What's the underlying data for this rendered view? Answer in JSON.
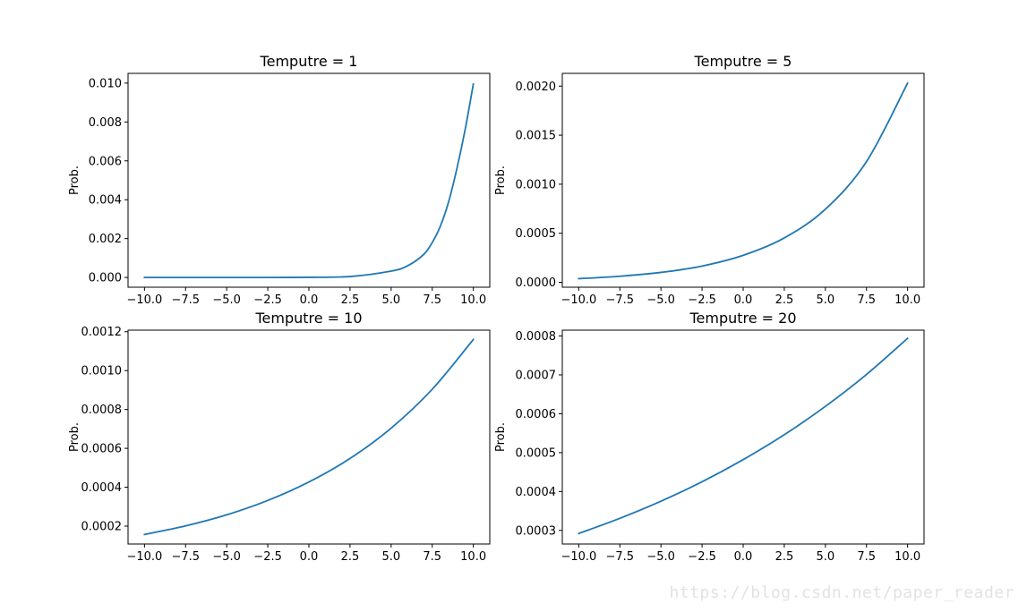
{
  "chart_data": [
    {
      "type": "line",
      "title": "Temputre = 1",
      "ylabel": "Prob.",
      "xlabel": "",
      "xlim": [
        -11.0,
        11.0
      ],
      "ylim": [
        -0.0005,
        0.0105
      ],
      "xticks": [
        "−10.0",
        "−7.5",
        "−5.0",
        "−2.5",
        "0.0",
        "2.5",
        "5.0",
        "7.5",
        "10.0"
      ],
      "yticks": [
        "0.000",
        "0.002",
        "0.004",
        "0.006",
        "0.008",
        "0.010"
      ],
      "series": [
        {
          "color": "#1f77b4",
          "x": [
            -10,
            -7.5,
            -5,
            -2.5,
            0,
            2.5,
            5,
            6,
            7,
            7.5,
            8,
            8.5,
            9,
            9.5,
            10
          ],
          "y": [
            0.0,
            0.0,
            0.0,
            0.0,
            1e-05,
            5e-05,
            0.00033,
            0.0006,
            0.0012,
            0.0018,
            0.00265,
            0.0039,
            0.0056,
            0.0076,
            0.00995
          ]
        }
      ]
    },
    {
      "type": "line",
      "title": "Temputre = 5",
      "ylabel": "Prob.",
      "xlabel": "",
      "xlim": [
        -11.0,
        11.0
      ],
      "ylim": [
        -5e-05,
        0.00213
      ],
      "xticks": [
        "−10.0",
        "−7.5",
        "−5.0",
        "−2.5",
        "0.0",
        "2.5",
        "5.0",
        "7.5",
        "10.0"
      ],
      "yticks": [
        "0.0000",
        "0.0005",
        "0.0010",
        "0.0015",
        "0.0020"
      ],
      "series": [
        {
          "color": "#1f77b4",
          "x": [
            -10,
            -7.5,
            -5,
            -2.5,
            0,
            2.5,
            5,
            7.5,
            10
          ],
          "y": [
            3.7e-05,
            6.2e-05,
            0.000101,
            0.000166,
            0.000275,
            0.000452,
            0.000745,
            0.00123,
            0.00203
          ]
        }
      ]
    },
    {
      "type": "line",
      "title": "Temputre = 10",
      "ylabel": "Prob.",
      "xlabel": "",
      "xlim": [
        -11.0,
        11.0
      ],
      "ylim": [
        0.000108,
        0.001208
      ],
      "xticks": [
        "−10.0",
        "−7.5",
        "−5.0",
        "−2.5",
        "0.0",
        "2.5",
        "5.0",
        "7.5",
        "10.0"
      ],
      "yticks": [
        "0.0002",
        "0.0004",
        "0.0006",
        "0.0008",
        "0.0010",
        "0.0012"
      ],
      "series": [
        {
          "color": "#1f77b4",
          "x": [
            -10,
            -7.5,
            -5,
            -2.5,
            0,
            2.5,
            5,
            7.5,
            10
          ],
          "y": [
            0.000157,
            0.000201,
            0.000258,
            0.000332,
            0.000427,
            0.000548,
            0.000704,
            0.000904,
            0.00116
          ]
        }
      ]
    },
    {
      "type": "line",
      "title": "Temputre = 20",
      "ylabel": "Prob.",
      "xlabel": "",
      "xlim": [
        -11.0,
        11.0
      ],
      "ylim": [
        0.000265,
        0.000815
      ],
      "xticks": [
        "−10.0",
        "−7.5",
        "−5.0",
        "−2.5",
        "0.0",
        "2.5",
        "5.0",
        "7.5",
        "10.0"
      ],
      "yticks": [
        "0.0003",
        "0.0004",
        "0.0005",
        "0.0006",
        "0.0007",
        "0.0008"
      ],
      "series": [
        {
          "color": "#1f77b4",
          "x": [
            -10,
            -7.5,
            -5,
            -2.5,
            0,
            2.5,
            5,
            7.5,
            10
          ],
          "y": [
            0.000292,
            0.000331,
            0.000375,
            0.000425,
            0.000482,
            0.000546,
            0.000619,
            0.000701,
            0.000794
          ]
        }
      ]
    }
  ],
  "watermark": "https://blog.csdn.net/paper_reader"
}
